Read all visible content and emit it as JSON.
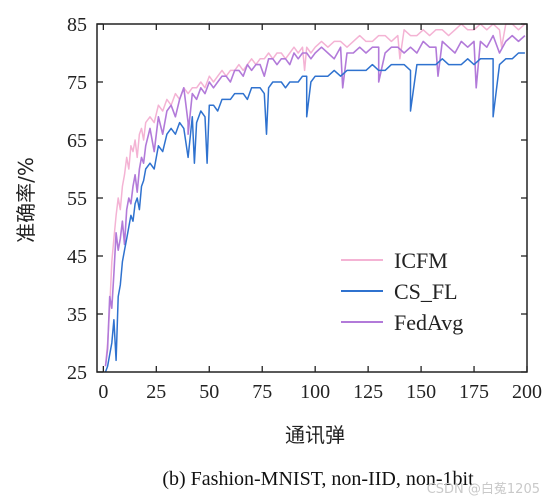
{
  "chart_data": {
    "type": "line",
    "xlabel": "通讯弹",
    "ylabel": "准确率/%",
    "xlim": [
      -3,
      200
    ],
    "ylim": [
      25,
      85
    ],
    "xticks": [
      0,
      25,
      50,
      75,
      100,
      125,
      150,
      175,
      200
    ],
    "yticks": [
      25,
      35,
      45,
      55,
      65,
      75,
      85
    ],
    "grid": false,
    "legend_position": "lower-right",
    "caption": "(b)  Fashion-MNIST, non-IID, non-1bit",
    "series": [
      {
        "name": "ICFM",
        "color": "#f4b3d4",
        "x": [
          1,
          2,
          3,
          4,
          5,
          6,
          7,
          8,
          9,
          10,
          11,
          12,
          13,
          14,
          15,
          16,
          17,
          18,
          19,
          20,
          22,
          24,
          26,
          28,
          30,
          32,
          34,
          36,
          38,
          40,
          42,
          44,
          46,
          48,
          50,
          52,
          54,
          56,
          58,
          60,
          62,
          64,
          66,
          68,
          70,
          72,
          74,
          76,
          78,
          80,
          82,
          84,
          86,
          88,
          90,
          92,
          94,
          96,
          98,
          100,
          103,
          106,
          109,
          112,
          115,
          118,
          121,
          124,
          127,
          130,
          133,
          136,
          139,
          142,
          145,
          148,
          151,
          154,
          157,
          160,
          163,
          166,
          169,
          172,
          175,
          178,
          181,
          184,
          187,
          190,
          193,
          196,
          199
        ],
        "y": [
          26,
          30,
          36,
          44,
          48,
          52,
          55,
          53,
          57,
          59,
          62,
          60,
          64,
          63,
          65,
          62,
          66,
          67,
          65,
          68,
          69,
          68,
          71,
          70,
          72,
          71,
          73,
          72,
          74,
          73,
          74,
          74,
          75,
          74,
          76,
          75,
          76,
          77,
          76,
          77,
          77,
          78,
          77,
          78,
          79,
          78,
          79,
          79,
          80,
          79,
          80,
          80,
          79,
          80,
          81,
          80,
          81,
          81,
          80,
          81,
          82,
          81,
          82,
          82,
          81,
          82,
          83,
          82,
          82,
          83,
          83,
          82,
          83,
          84,
          83,
          83,
          84,
          83,
          84,
          84,
          83,
          84,
          85,
          84,
          84,
          85,
          84,
          85,
          84,
          85,
          85,
          84,
          85
        ]
      },
      {
        "name": "CS_FL",
        "color": "#2f72cf",
        "x": [
          1,
          2,
          3,
          4,
          5,
          6,
          7,
          8,
          9,
          10,
          11,
          12,
          13,
          14,
          15,
          16,
          17,
          18,
          19,
          20,
          22,
          24,
          26,
          28,
          30,
          32,
          34,
          36,
          38,
          40,
          42,
          44,
          46,
          48,
          50,
          52,
          54,
          56,
          58,
          60,
          62,
          64,
          66,
          68,
          70,
          72,
          74,
          76,
          78,
          80,
          82,
          84,
          86,
          88,
          90,
          92,
          94,
          96,
          98,
          100,
          103,
          106,
          109,
          112,
          115,
          118,
          121,
          124,
          127,
          130,
          133,
          136,
          139,
          142,
          145,
          148,
          151,
          154,
          157,
          160,
          163,
          166,
          169,
          172,
          175,
          178,
          181,
          184,
          187,
          190,
          193,
          196,
          199
        ],
        "y": [
          25,
          26,
          28,
          30,
          34,
          27,
          38,
          40,
          44,
          46,
          48,
          50,
          52,
          51,
          54,
          55,
          53,
          57,
          58,
          60,
          61,
          60,
          64,
          63,
          66,
          67,
          66,
          68,
          67,
          62,
          69,
          68,
          70,
          69,
          71,
          71,
          70,
          72,
          72,
          72,
          73,
          73,
          73,
          72,
          74,
          74,
          74,
          73,
          74,
          75,
          75,
          75,
          74,
          75,
          75,
          75,
          76,
          76,
          75,
          76,
          76,
          76,
          77,
          76,
          77,
          77,
          77,
          77,
          78,
          77,
          77,
          78,
          78,
          78,
          77,
          78,
          78,
          78,
          78,
          79,
          78,
          78,
          78,
          79,
          78,
          79,
          79,
          79,
          78,
          79,
          79,
          80,
          80
        ]
      },
      {
        "name": "FedAvg",
        "color": "#b27ad9",
        "x": [
          1,
          2,
          3,
          4,
          5,
          6,
          7,
          8,
          9,
          10,
          11,
          12,
          13,
          14,
          15,
          16,
          17,
          18,
          19,
          20,
          22,
          24,
          26,
          28,
          30,
          32,
          34,
          36,
          38,
          40,
          42,
          44,
          46,
          48,
          50,
          52,
          54,
          56,
          58,
          60,
          62,
          64,
          66,
          68,
          70,
          72,
          74,
          76,
          78,
          80,
          82,
          84,
          86,
          88,
          90,
          92,
          94,
          96,
          98,
          100,
          103,
          106,
          109,
          112,
          115,
          118,
          121,
          124,
          127,
          130,
          133,
          136,
          139,
          142,
          145,
          148,
          151,
          154,
          157,
          160,
          163,
          166,
          169,
          172,
          175,
          178,
          181,
          184,
          187,
          190,
          193,
          196,
          199
        ],
        "y": [
          26,
          29,
          38,
          36,
          42,
          49,
          46,
          48,
          51,
          47,
          53,
          55,
          54,
          57,
          59,
          56,
          60,
          62,
          61,
          64,
          67,
          63,
          69,
          66,
          70,
          71,
          69,
          72,
          74,
          68,
          73,
          72,
          74,
          73,
          75,
          74,
          75,
          76,
          76,
          75,
          77,
          77,
          76,
          78,
          77,
          78,
          78,
          76,
          79,
          79,
          78,
          79,
          79,
          78,
          80,
          79,
          80,
          80,
          79,
          80,
          81,
          80,
          79,
          81,
          80,
          80,
          81,
          80,
          81,
          81,
          80,
          81,
          81,
          80,
          81,
          80,
          82,
          81,
          81,
          82,
          81,
          80,
          82,
          81,
          82,
          82,
          81,
          83,
          80,
          82,
          83,
          82,
          83
        ]
      }
    ],
    "dips": [
      {
        "series": "CS_FL",
        "x": 43,
        "y": 61
      },
      {
        "series": "CS_FL",
        "x": 49,
        "y": 61
      },
      {
        "series": "CS_FL",
        "x": 77,
        "y": 66
      },
      {
        "series": "CS_FL",
        "x": 96,
        "y": 69
      },
      {
        "series": "CS_FL",
        "x": 145,
        "y": 70
      },
      {
        "series": "CS_FL",
        "x": 184,
        "y": 69
      },
      {
        "series": "FedAvg",
        "x": 40,
        "y": 66
      },
      {
        "series": "FedAvg",
        "x": 113,
        "y": 74
      },
      {
        "series": "FedAvg",
        "x": 130,
        "y": 75
      },
      {
        "series": "FedAvg",
        "x": 158,
        "y": 76
      },
      {
        "series": "FedAvg",
        "x": 176,
        "y": 74
      },
      {
        "series": "ICFM",
        "x": 95,
        "y": 77
      },
      {
        "series": "ICFM",
        "x": 140,
        "y": 79
      },
      {
        "series": "ICFM",
        "x": 188,
        "y": 81
      }
    ]
  },
  "watermark": "CSDN @白菟1205"
}
